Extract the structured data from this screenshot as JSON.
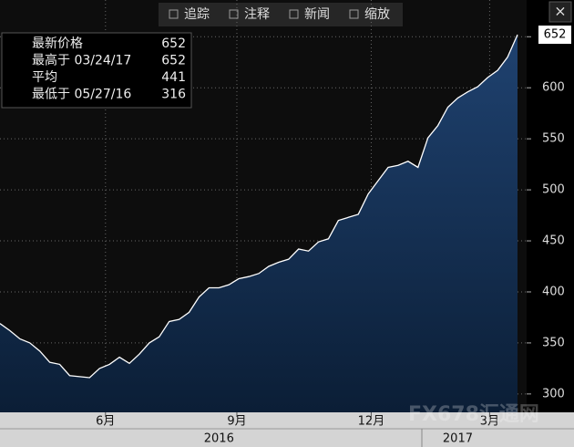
{
  "chart_data": {
    "type": "area",
    "color": "#ffffff",
    "fill": "#1b3a63",
    "grid": true,
    "values": [
      369,
      362,
      354,
      350,
      342,
      331,
      329,
      318,
      317,
      316,
      325,
      329,
      336,
      330,
      339,
      350,
      356,
      371,
      373,
      380,
      395,
      404,
      404,
      407,
      413,
      415,
      418,
      425,
      429,
      432,
      442,
      440,
      449,
      452,
      470,
      473,
      476,
      496,
      509,
      522,
      524,
      528,
      522,
      551,
      563,
      581,
      590,
      596,
      601,
      610,
      617,
      630,
      652
    ],
    "ylim": [
      282,
      686
    ],
    "yticks": [
      300,
      350,
      400,
      450,
      500,
      550,
      600,
      650
    ],
    "xlim": [
      0,
      52
    ],
    "xticks": [
      {
        "value": 10.6,
        "label": "6月"
      },
      {
        "value": 23.8,
        "label": "9月"
      },
      {
        "value": 37.3,
        "label": "12月"
      },
      {
        "value": 49.2,
        "label": "3月"
      }
    ],
    "years": [
      {
        "value": 22,
        "label": "2016"
      },
      {
        "value": 46,
        "label": "2017"
      }
    ],
    "legend": [
      {
        "label": "最新价格",
        "value": 652
      },
      {
        "label": "最高于 03/24/17",
        "value": 652
      },
      {
        "label": "平均",
        "value": 441
      },
      {
        "label": "最低于 05/27/16",
        "value": 316
      }
    ],
    "toolbar": [
      "追踪",
      "注释",
      "新闻",
      "缩放"
    ],
    "watermark": "FX678汇通网"
  }
}
